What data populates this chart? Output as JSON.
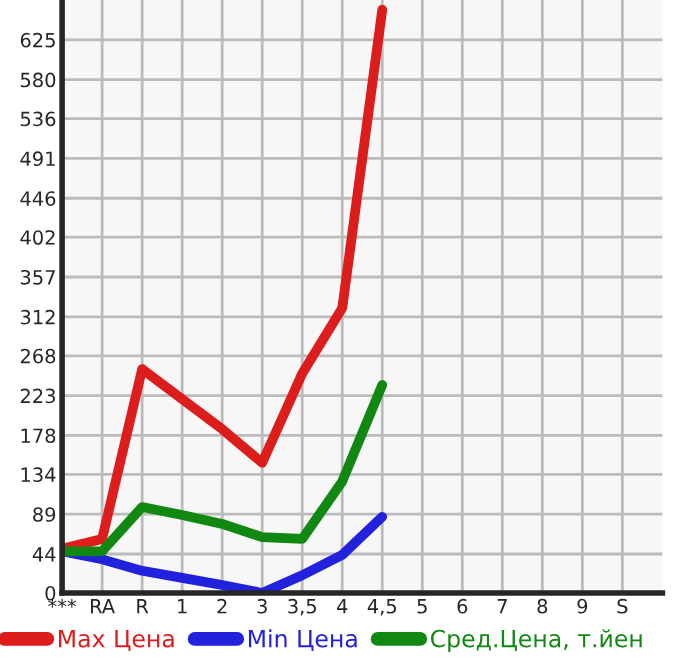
{
  "chart_data": {
    "type": "line",
    "categories": [
      "***",
      "RA",
      "R",
      "1",
      "2",
      "3",
      "3,5",
      "4",
      "4,5",
      "5",
      "6",
      "7",
      "8",
      "9",
      "S"
    ],
    "series": [
      {
        "name": "Max Цена",
        "color": "#dd1c1c",
        "values": [
          50,
          61,
          253,
          219,
          185,
          147,
          248,
          322,
          659,
          null,
          null,
          null,
          null,
          null,
          null
        ]
      },
      {
        "name": "Min Цена",
        "color": "#2222dd",
        "values": [
          47,
          38,
          25,
          17,
          9,
          0,
          20,
          43,
          86,
          null,
          null,
          null,
          null,
          null,
          null
        ]
      },
      {
        "name": "Сред.Цена, т.йен",
        "color": "#118811",
        "values": [
          47,
          47,
          97,
          88,
          78,
          63,
          61,
          126,
          235,
          null,
          null,
          null,
          null,
          null,
          null
        ]
      }
    ],
    "ylim": [
      0,
      670
    ],
    "yticks": [
      0,
      44,
      89,
      134,
      178,
      223,
      268,
      312,
      357,
      402,
      446,
      491,
      536,
      580,
      625
    ],
    "grid": true,
    "legend": "bottom",
    "marker": "none",
    "line_style": "solid"
  }
}
